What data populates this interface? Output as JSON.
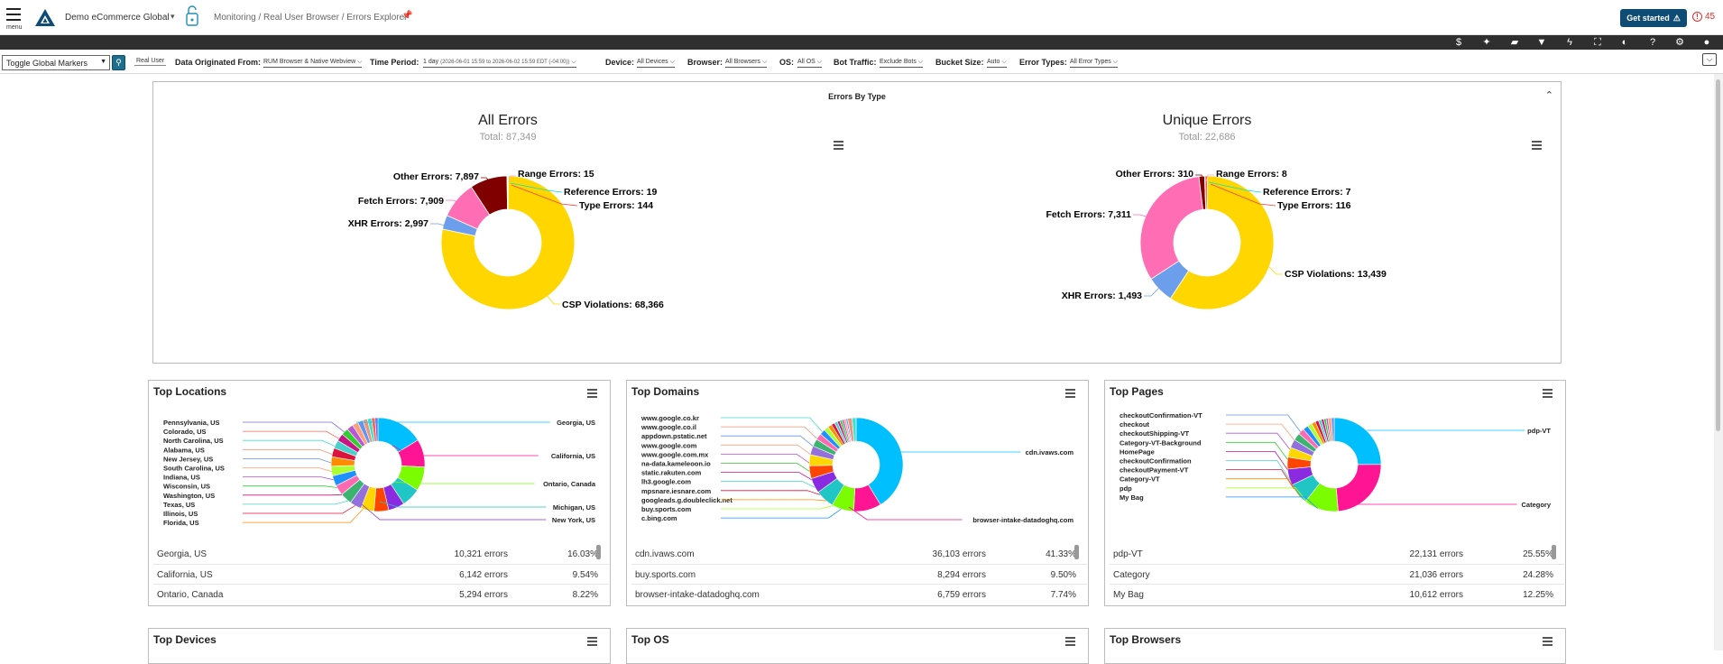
{
  "header": {
    "menu_label": "menu",
    "app_name": "Demo eCommerce Global",
    "breadcrumb": "Monitoring / Real User Browser / Errors Explorer",
    "get_started": "Get started",
    "alert_count": "45"
  },
  "toolbar_icons": [
    "dollar-icon",
    "sparkle-icon",
    "comment-icon",
    "filter-icon",
    "bolt-icon",
    "fullscreen-icon",
    "contrast-icon",
    "help-icon",
    "gear-icon",
    "user-icon"
  ],
  "filters": {
    "toggle_markers": "Toggle Global Markers",
    "real_user": "Real User",
    "data_origin_label": "Data Originated From:",
    "data_origin_value": "RUM Browser & Native Webview",
    "time_period_label": "Time Period:",
    "time_period_value": "1 day",
    "time_period_range": "(2026-06-01 15:59 to 2026-06-02 15:59 EDT (-04:00))",
    "device_label": "Device:",
    "device_value": "All Devices",
    "browser_label": "Browser:",
    "browser_value": "All Browsers",
    "os_label": "OS:",
    "os_value": "All OS",
    "bot_label": "Bot Traffic:",
    "bot_value": "Exclude Bots",
    "bucket_label": "Bucket Size:",
    "bucket_value": "Auto",
    "error_types_label": "Error Types:",
    "error_types_value": "All Error Types"
  },
  "errors_by_type": {
    "title": "Errors By Type",
    "all": {
      "title": "All Errors",
      "subtitle": "Total: 87,349",
      "labels": [
        "Other Errors: 7,897",
        "Range Errors: 15",
        "Reference Errors: 19",
        "Type Errors: 144",
        "Fetch Errors: 7,909",
        "XHR Errors: 2,997",
        "CSP Violations: 68,366"
      ]
    },
    "unique": {
      "title": "Unique Errors",
      "subtitle": "Total: 22,686",
      "labels": [
        "Other Errors: 310",
        "Range Errors: 8",
        "Reference Errors: 7",
        "Type Errors: 116",
        "Fetch Errors: 7,311",
        "XHR Errors: 1,493",
        "CSP Violations: 13,439"
      ]
    }
  },
  "chart_data": [
    {
      "type": "pie",
      "title": "All Errors",
      "subtitle": "Total: 87,349",
      "categories": [
        "CSP Violations",
        "XHR Errors",
        "Fetch Errors",
        "Other Errors",
        "Range Errors",
        "Reference Errors",
        "Type Errors"
      ],
      "values": [
        68366,
        2997,
        7909,
        7897,
        15,
        19,
        144
      ],
      "colors": [
        "#ffd600",
        "#6d9eeb",
        "#ff6eb4",
        "#800000",
        "#f7a8c8",
        "#00e5c8",
        "#ff3a3a"
      ]
    },
    {
      "type": "pie",
      "title": "Unique Errors",
      "subtitle": "Total: 22,686",
      "categories": [
        "CSP Violations",
        "XHR Errors",
        "Fetch Errors",
        "Other Errors",
        "Range Errors",
        "Reference Errors",
        "Type Errors"
      ],
      "values": [
        13439,
        1493,
        7311,
        310,
        8,
        7,
        116
      ],
      "colors": [
        "#ffd600",
        "#6d9eeb",
        "#ff6eb4",
        "#800000",
        "#f7a8c8",
        "#00e5c8",
        "#ff3a3a"
      ]
    }
  ],
  "cards": {
    "locations": {
      "title": "Top Locations",
      "left_labels": [
        "Pennsylvania, US",
        "Colorado, US",
        "North Carolina, US",
        "Alabama, US",
        "New Jersey, US",
        "South Carolina, US",
        "Indiana, US",
        "Wisconsin, US",
        "Washington, US",
        "Texas, US",
        "Illinois, US",
        "Florida, US"
      ],
      "right_labels": [
        "Georgia, US",
        "California, US",
        "Ontario, Canada",
        "Michigan, US",
        "New York, US"
      ],
      "rows": [
        {
          "name": "Georgia, US",
          "count": "10,321 errors",
          "pct": "16.03%"
        },
        {
          "name": "California, US",
          "count": "6,142 errors",
          "pct": "9.54%"
        },
        {
          "name": "Ontario, Canada",
          "count": "5,294 errors",
          "pct": "8.22%"
        }
      ]
    },
    "domains": {
      "title": "Top Domains",
      "left_labels": [
        "www.google.co.kr",
        "www.google.co.il",
        "appdown.pstatic.net",
        "www.google.com",
        "www.google.com.mx",
        "na-data.kameleoon.io",
        "static.rakuten.com",
        "lh3.google.com",
        "mpsnare.iesnare.com",
        "googleads.g.doubleclick.net",
        "buy.sports.com",
        "c.bing.com"
      ],
      "right_labels": [
        "cdn.ivaws.com",
        "browser-intake-datadoghq.com"
      ],
      "rows": [
        {
          "name": "cdn.ivaws.com",
          "count": "36,103 errors",
          "pct": "41.33%"
        },
        {
          "name": "buy.sports.com",
          "count": "8,294 errors",
          "pct": "9.50%"
        },
        {
          "name": "browser-intake-datadoghq.com",
          "count": "6,759 errors",
          "pct": "7.74%"
        }
      ]
    },
    "pages": {
      "title": "Top Pages",
      "left_labels": [
        "checkoutConfirmation-VT",
        "checkout",
        "checkoutShipping-VT",
        "Category-VT-Background",
        "HomePage",
        "checkoutConfirmation",
        "checkoutPayment-VT",
        "Category-VT",
        "pdp",
        "My Bag"
      ],
      "right_labels": [
        "pdp-VT",
        "Category"
      ],
      "rows": [
        {
          "name": "pdp-VT",
          "count": "22,131 errors",
          "pct": "25.55%"
        },
        {
          "name": "Category",
          "count": "21,036 errors",
          "pct": "24.28%"
        },
        {
          "name": "My Bag",
          "count": "10,612 errors",
          "pct": "12.25%"
        }
      ]
    },
    "devices": {
      "title": "Top Devices"
    },
    "os": {
      "title": "Top OS"
    },
    "browsers": {
      "title": "Top Browsers"
    }
  },
  "colors": {
    "brand": "#0f4c75",
    "alert": "#d9302c",
    "dark_toolbar": "#2f2f2f"
  }
}
